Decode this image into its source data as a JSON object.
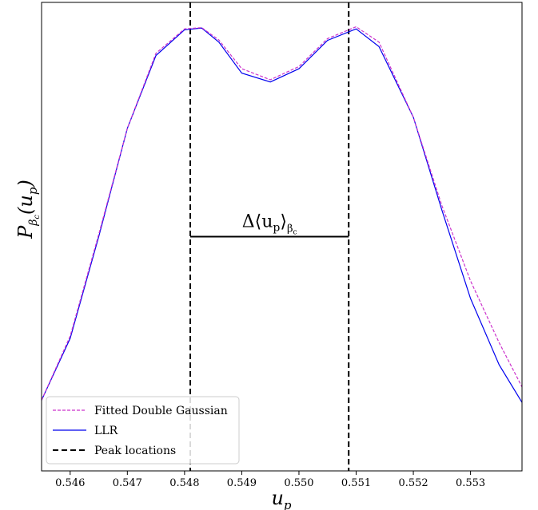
{
  "chart_data": {
    "type": "line",
    "xlabel": "u_p",
    "ylabel": "P_βc(u_p)",
    "xlim": [
      0.5455,
      0.5539
    ],
    "ylim": [
      0,
      1.06
    ],
    "x_ticks": [
      "0.546",
      "0.547",
      "0.548",
      "0.549",
      "0.550",
      "0.551",
      "0.552",
      "0.553"
    ],
    "x_tick_values": [
      0.546,
      0.547,
      0.548,
      0.549,
      0.55,
      0.551,
      0.552,
      0.553
    ],
    "y_ticks_shown": false,
    "grid": false,
    "legend_position": "lower-left",
    "series": [
      {
        "name": "Fitted Double Gaussian",
        "style": "dashed",
        "color": "#cc33cc",
        "x": [
          0.5455,
          0.546,
          0.5465,
          0.547,
          0.5475,
          0.548,
          0.5483,
          0.5486,
          0.549,
          0.5495,
          0.55,
          0.5505,
          0.551,
          0.5514,
          0.552,
          0.5525,
          0.553,
          0.5535,
          0.5539
        ],
        "y": [
          0.16,
          0.305,
          0.535,
          0.775,
          0.945,
          1.0,
          1.003,
          0.975,
          0.91,
          0.885,
          0.915,
          0.978,
          1.005,
          0.97,
          0.8,
          0.6,
          0.43,
          0.29,
          0.19
        ]
      },
      {
        "name": "LLR",
        "style": "solid",
        "color": "#0000ee",
        "x": [
          0.5455,
          0.546,
          0.5465,
          0.547,
          0.5475,
          0.548,
          0.5483,
          0.5486,
          0.549,
          0.5495,
          0.55,
          0.5505,
          0.551,
          0.5514,
          0.552,
          0.5525,
          0.553,
          0.5535,
          0.5539
        ],
        "y": [
          0.16,
          0.3,
          0.53,
          0.775,
          0.94,
          0.998,
          1.002,
          0.97,
          0.9,
          0.88,
          0.91,
          0.974,
          1.0,
          0.96,
          0.8,
          0.59,
          0.39,
          0.24,
          0.155
        ]
      }
    ],
    "peak_locations": {
      "name": "Peak locations",
      "x": [
        0.5481,
        0.55087
      ],
      "color": "#000000",
      "style": "dashed"
    },
    "annotation": {
      "text": "Δ⟨u_p⟩_βc",
      "y": 0.53,
      "x_from": 0.5481,
      "x_to": 0.55087
    }
  }
}
